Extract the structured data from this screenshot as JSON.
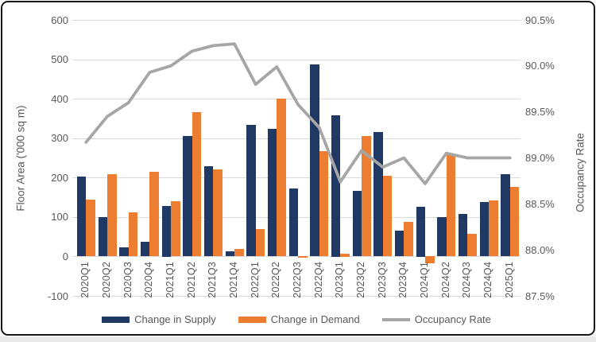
{
  "chart_data": {
    "type": "combo-bar-line",
    "title": "",
    "categories": [
      "2020Q1",
      "2020Q2",
      "2020Q3",
      "2020Q4",
      "2021Q1",
      "2021Q2",
      "2021Q3",
      "2021Q4",
      "2022Q1",
      "2022Q2",
      "2022Q3",
      "2022Q4",
      "2023Q1",
      "2023Q2",
      "2023Q3",
      "2023Q4",
      "2024Q1",
      "2024Q2",
      "2024Q3",
      "2024Q4",
      "2025Q1"
    ],
    "series": [
      {
        "name": "Change in Supply",
        "type": "bar",
        "axis": "left",
        "color": "#1F3864",
        "values": [
          202,
          100,
          23,
          38,
          128,
          305,
          228,
          14,
          333,
          323,
          172,
          487,
          358,
          167,
          315,
          65,
          127,
          100,
          107,
          139,
          209
        ]
      },
      {
        "name": "Change in Demand",
        "type": "bar",
        "axis": "left",
        "color": "#ED7D31",
        "values": [
          145,
          209,
          111,
          215,
          140,
          367,
          221,
          20,
          70,
          400,
          -4,
          268,
          8,
          305,
          204,
          87,
          -17,
          258,
          58,
          143,
          177
        ]
      },
      {
        "name": "Occupancy Rate",
        "type": "line",
        "axis": "right",
        "color": "#A6A6A6",
        "values": [
          89.17,
          89.45,
          89.6,
          89.93,
          90.0,
          90.16,
          90.22,
          90.24,
          89.8,
          89.99,
          89.58,
          89.33,
          88.74,
          89.08,
          88.9,
          89.0,
          88.72,
          89.05,
          89.0,
          89.0,
          89.0
        ]
      }
    ],
    "left_axis": {
      "title": "Floor Area ('000 sq m)",
      "min": -100,
      "max": 600,
      "step": 100,
      "tick_labels": [
        "600",
        "500",
        "400",
        "300",
        "200",
        "100",
        "0",
        "-100"
      ]
    },
    "right_axis": {
      "title": "Occupancy Rate",
      "min": 87.5,
      "max": 90.5,
      "step": 0.5,
      "tick_labels": [
        "90.5%",
        "90.0%",
        "89.5%",
        "89.0%",
        "88.5%",
        "88.0%",
        "87.5%"
      ]
    },
    "legend": [
      "Change in Supply",
      "Change in Demand",
      "Occupancy Rate"
    ],
    "legend_position": "bottom",
    "grid": true
  },
  "styles": {
    "grid_color": "#D9D9D9",
    "text_color": "#595959",
    "border_color": "#181818",
    "strip_color": "#e9e9e9",
    "background": "#ffffff"
  }
}
